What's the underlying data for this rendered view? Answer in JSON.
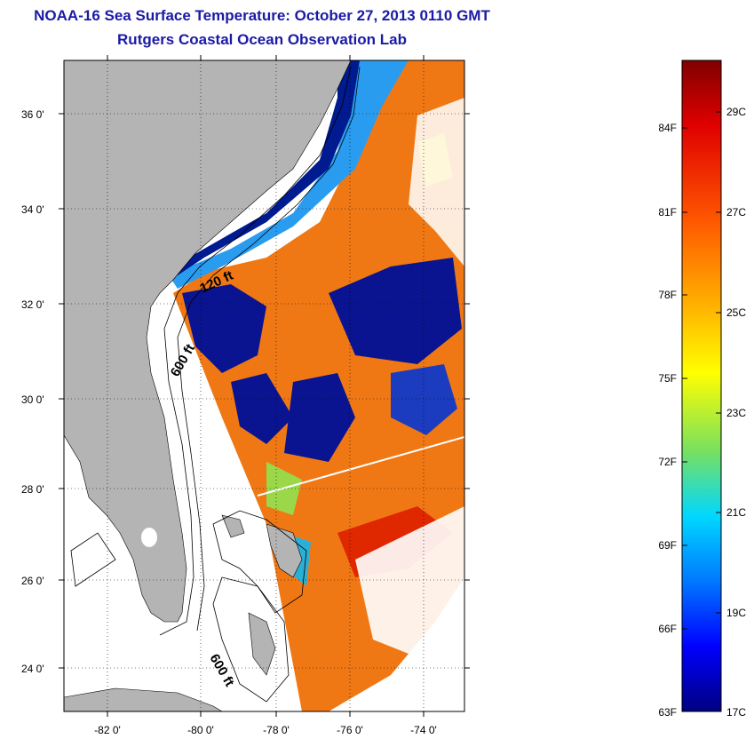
{
  "header": {
    "title": "NOAA-16 Sea Surface Temperature:  October 27, 2013 0110 GMT",
    "subtitle": "Rutgers Coastal Ocean Observation Lab"
  },
  "map": {
    "lat_ticks": [
      "24 0'",
      "26 0'",
      "28 0'",
      "30 0'",
      "32 0'",
      "34 0'",
      "36 0'"
    ],
    "lon_ticks": [
      "-82 0'",
      "-80 0'",
      "-78 0'",
      "-76 0'",
      "-74 0'"
    ],
    "contour_labels": [
      "120 ft",
      "600 ft",
      "600 ft"
    ],
    "colors": {
      "land": "#b4b4b4",
      "water_nodata": "#ffffff",
      "cold": "#000a8c",
      "warm": "#f07814"
    }
  },
  "colorbar": {
    "f_labels": [
      "84F",
      "81F",
      "78F",
      "75F",
      "72F",
      "69F",
      "66F",
      "63F"
    ],
    "c_labels": [
      "29C",
      "27C",
      "25C",
      "23C",
      "21C",
      "19C",
      "17C"
    ]
  }
}
